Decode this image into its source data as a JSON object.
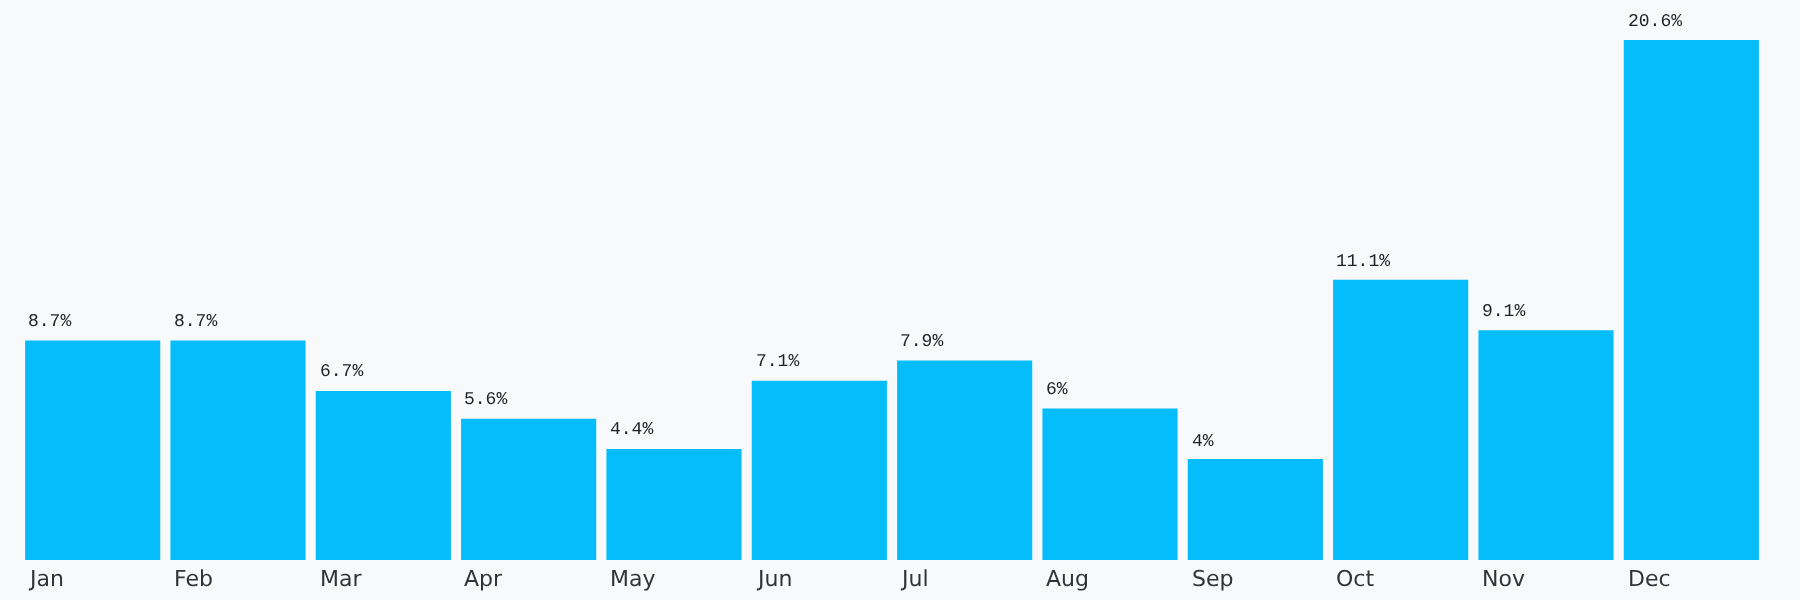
{
  "chart_data": {
    "type": "bar",
    "categories": [
      "Jan",
      "Feb",
      "Mar",
      "Apr",
      "May",
      "Jun",
      "Jul",
      "Aug",
      "Sep",
      "Oct",
      "Nov",
      "Dec"
    ],
    "values": [
      8.7,
      8.7,
      6.7,
      5.6,
      4.4,
      7.1,
      7.9,
      6,
      4,
      11.1,
      9.1,
      20.6
    ],
    "value_labels": [
      "8.7%",
      "8.7%",
      "6.7%",
      "5.6%",
      "4.4%",
      "7.1%",
      "7.9%",
      "6%",
      "4%",
      "11.1%",
      "9.1%",
      "20.6%"
    ],
    "color": "#06bdfb",
    "data_labels": true
  }
}
